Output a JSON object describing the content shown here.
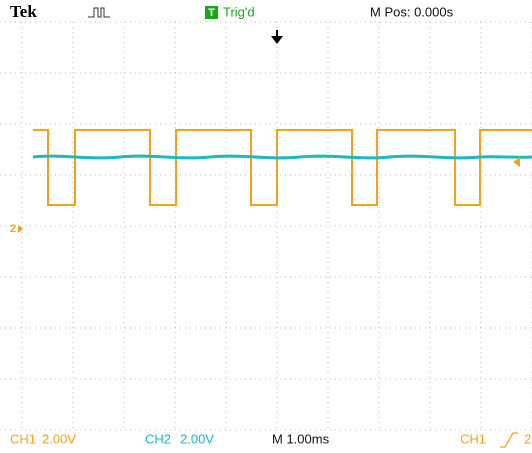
{
  "header": {
    "brand": "Tek",
    "trigger_box": "T",
    "trigger_status": "Trig'd",
    "position": "M Pos: 0.000s"
  },
  "markers": {
    "ch2_ground": "2"
  },
  "footer": {
    "ch1_label": "CH1",
    "ch1_scale": "2.00V",
    "ch2_label": "CH2",
    "ch2_scale": "2.00V",
    "timebase": "M 1.00ms",
    "trigger_source": "CH1",
    "trigger_level": "2"
  }
}
